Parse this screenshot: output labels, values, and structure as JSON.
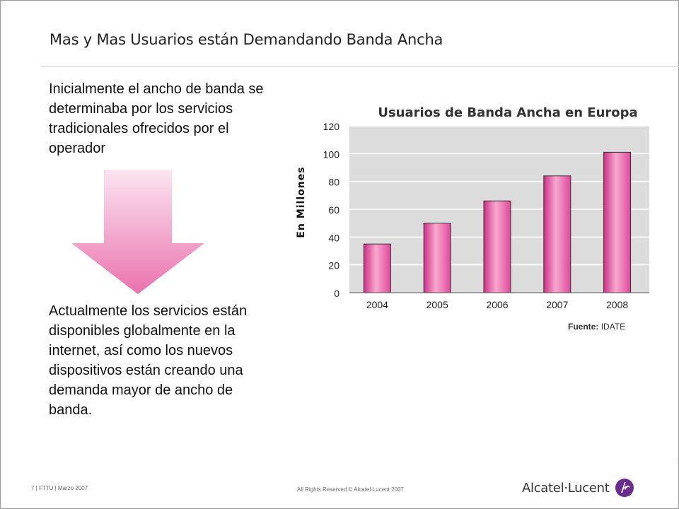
{
  "slide": {
    "title": "Mas y Mas Usuarios están Demandando Banda Ancha",
    "paragraph_1": "Inicialmente el ancho de banda se determinaba por los servicios tradicionales ofrecidos por el operador",
    "paragraph_2": "Actualmente los servicios están disponibles globalmente en la internet, así como los nuevos dispositivos están creando una demanda mayor de ancho de banda.",
    "source_label": "Fuente:",
    "source_value": "IDATE",
    "footer_left": "7 | FTTU | Marzo 2007",
    "footer_center": "All Rights Reserved © Alcatel-Lucent 2007",
    "logo_text": "Alcatel·Lucent",
    "stray_mark": "."
  },
  "icons": {
    "arrow": "down-arrow-icon",
    "logo": "alcatel-lucent-logo-icon"
  },
  "colors": {
    "bar": "#e0479a",
    "bar_light": "#f7a9cf",
    "plot_bg": "#dcdcdc",
    "arrow_top": "#fbe5f0",
    "arrow_bottom": "#ea72ad"
  },
  "chart_data": {
    "type": "bar",
    "title": "Usuarios de Banda Ancha en Europa",
    "ylabel": "En Millones",
    "xlabel": "",
    "categories": [
      "2004",
      "2005",
      "2006",
      "2007",
      "2008"
    ],
    "values": [
      35,
      50,
      66,
      84,
      101
    ],
    "ylim": [
      0,
      120
    ],
    "yticks": [
      0,
      20,
      40,
      60,
      80,
      100,
      120
    ],
    "grid": true
  }
}
